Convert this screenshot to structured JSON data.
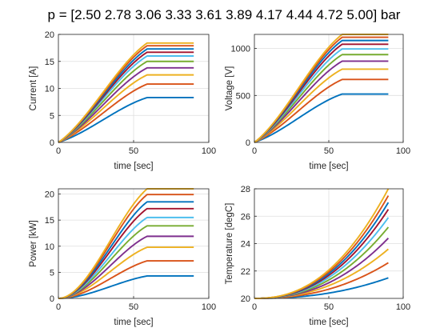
{
  "figure": {
    "title": "p = [2.50 2.78 3.06 3.33 3.61 3.89 4.17 4.44 4.72 5.00] bar"
  },
  "palette": [
    "#0072BD",
    "#D95319",
    "#EDB120",
    "#7E2F8E",
    "#77AC30",
    "#4DBEEE",
    "#A2142F",
    "#0072BD",
    "#D95319",
    "#EDB120"
  ],
  "chart_data": [
    {
      "type": "line",
      "xlabel": "time [sec]",
      "ylabel": "Current [A]",
      "xlim": [
        0,
        100
      ],
      "ylim": [
        0,
        20
      ],
      "xticks": [
        0,
        50,
        100
      ],
      "yticks": [
        0,
        5,
        10,
        15,
        20
      ],
      "grid": true,
      "time_end": 90,
      "ramp_end": 59,
      "shape": "s-curve rising to plateau at 59 s",
      "series": [
        {
          "start": 0,
          "plateau": 8.3
        },
        {
          "start": 0,
          "plateau": 10.8
        },
        {
          "start": 0,
          "plateau": 12.5
        },
        {
          "start": 0,
          "plateau": 13.8
        },
        {
          "start": 0,
          "plateau": 15.0
        },
        {
          "start": 0,
          "plateau": 16.0
        },
        {
          "start": 0,
          "plateau": 16.7
        },
        {
          "start": 0,
          "plateau": 17.3
        },
        {
          "start": 0,
          "plateau": 17.9
        },
        {
          "start": 0,
          "plateau": 18.4
        }
      ]
    },
    {
      "type": "line",
      "xlabel": "time [sec]",
      "ylabel": "Voltage [V]",
      "xlim": [
        0,
        100
      ],
      "ylim": [
        0,
        1150
      ],
      "xticks": [
        0,
        50,
        100
      ],
      "yticks": [
        0,
        500,
        1000
      ],
      "grid": true,
      "time_end": 90,
      "ramp_end": 59,
      "shape": "s-curve rising to plateau at 59 s",
      "series": [
        {
          "start": 0,
          "plateau": 515
        },
        {
          "start": 0,
          "plateau": 670
        },
        {
          "start": 0,
          "plateau": 780
        },
        {
          "start": 0,
          "plateau": 865
        },
        {
          "start": 0,
          "plateau": 935
        },
        {
          "start": 0,
          "plateau": 995
        },
        {
          "start": 0,
          "plateau": 1045
        },
        {
          "start": 0,
          "plateau": 1085
        },
        {
          "start": 0,
          "plateau": 1120
        },
        {
          "start": 0,
          "plateau": 1150
        }
      ]
    },
    {
      "type": "line",
      "xlabel": "time [sec]",
      "ylabel": "Power [kW]",
      "xlim": [
        0,
        100
      ],
      "ylim": [
        0,
        21
      ],
      "xticks": [
        0,
        50,
        100
      ],
      "yticks": [
        0,
        5,
        10,
        15,
        20
      ],
      "grid": true,
      "time_end": 90,
      "ramp_end": 59,
      "shape": "convex rise to plateau at 59 s",
      "series": [
        {
          "start": 0,
          "plateau": 4.3
        },
        {
          "start": 0,
          "plateau": 7.2
        },
        {
          "start": 0,
          "plateau": 9.8
        },
        {
          "start": 0,
          "plateau": 11.9
        },
        {
          "start": 0,
          "plateau": 13.9
        },
        {
          "start": 0,
          "plateau": 15.5
        },
        {
          "start": 0,
          "plateau": 17.2
        },
        {
          "start": 0,
          "plateau": 18.5
        },
        {
          "start": 0,
          "plateau": 19.9
        },
        {
          "start": 0,
          "plateau": 21.0
        }
      ]
    },
    {
      "type": "line",
      "xlabel": "time [sec]",
      "ylabel": "Temperature [degC]",
      "xlim": [
        0,
        100
      ],
      "ylim": [
        20,
        28
      ],
      "xticks": [
        0,
        50,
        100
      ],
      "yticks": [
        20,
        22,
        24,
        26,
        28
      ],
      "grid": true,
      "time_end": 90,
      "shape": "accelerating rise over full range",
      "series": [
        {
          "start": 20,
          "end": 21.5
        },
        {
          "start": 20,
          "end": 22.6
        },
        {
          "start": 20,
          "end": 23.6
        },
        {
          "start": 20,
          "end": 24.4
        },
        {
          "start": 20,
          "end": 25.2
        },
        {
          "start": 20,
          "end": 25.9
        },
        {
          "start": 20,
          "end": 26.5
        },
        {
          "start": 20,
          "end": 27.0
        },
        {
          "start": 20,
          "end": 27.5
        },
        {
          "start": 20,
          "end": 28.0
        }
      ]
    }
  ]
}
